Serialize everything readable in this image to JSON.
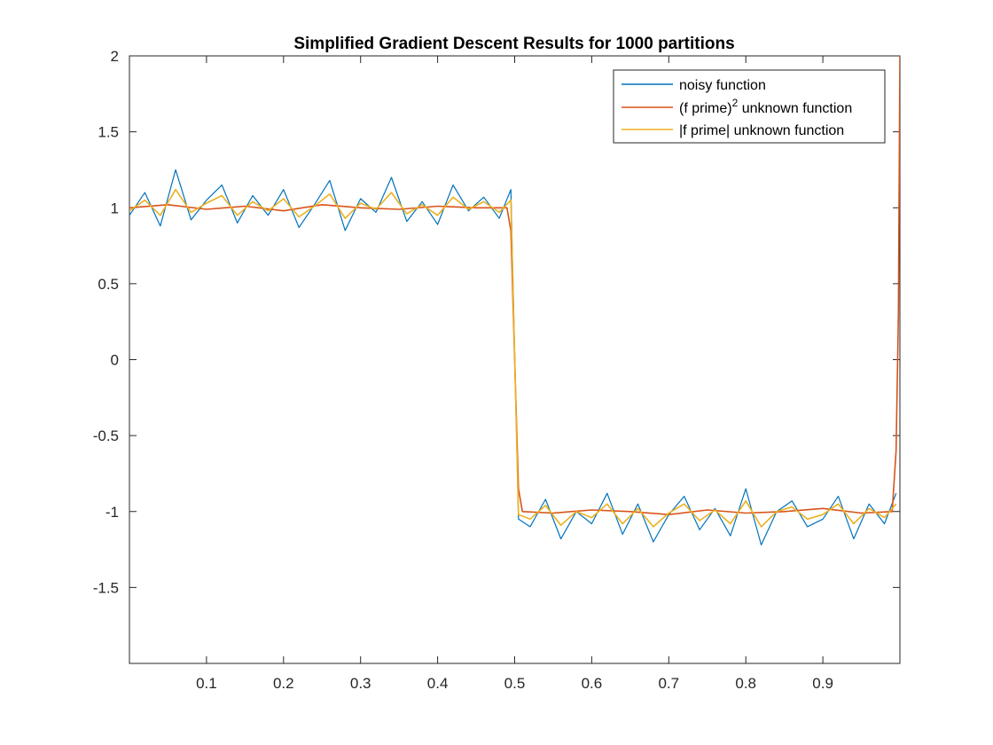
{
  "chart_data": {
    "type": "line",
    "title": "Simplified Gradient Descent Results for 1000 partitions",
    "xlabel": "",
    "ylabel": "",
    "xlim": [
      0,
      1
    ],
    "ylim": [
      -2,
      2
    ],
    "xticks": [
      0.1,
      0.2,
      0.3,
      0.4,
      0.5,
      0.6,
      0.7,
      0.8,
      0.9
    ],
    "xtick_labels": [
      "0.1",
      "0.2",
      "0.3",
      "0.4",
      "0.5",
      "0.6",
      "0.7",
      "0.8",
      "0.9"
    ],
    "yticks": [
      -1.5,
      -1,
      -0.5,
      0,
      0.5,
      1,
      1.5,
      2
    ],
    "ytick_labels": [
      "-1.5",
      "-1",
      "-0.5",
      "0",
      "0.5",
      "1",
      "1.5",
      "2"
    ],
    "grid": false,
    "legend_position": "top-right",
    "series": [
      {
        "name": "noisy function",
        "color": "#0072BD",
        "x": [
          0.0,
          0.02,
          0.04,
          0.06,
          0.08,
          0.1,
          0.12,
          0.14,
          0.16,
          0.18,
          0.2,
          0.22,
          0.24,
          0.26,
          0.28,
          0.3,
          0.32,
          0.34,
          0.36,
          0.38,
          0.4,
          0.42,
          0.44,
          0.46,
          0.48,
          0.495,
          0.505,
          0.52,
          0.54,
          0.56,
          0.58,
          0.6,
          0.62,
          0.64,
          0.66,
          0.68,
          0.7,
          0.72,
          0.74,
          0.76,
          0.78,
          0.8,
          0.82,
          0.84,
          0.86,
          0.88,
          0.9,
          0.92,
          0.94,
          0.96,
          0.98,
          0.995
        ],
        "y": [
          0.95,
          1.1,
          0.88,
          1.25,
          0.92,
          1.05,
          1.15,
          0.9,
          1.08,
          0.95,
          1.12,
          0.87,
          1.02,
          1.18,
          0.85,
          1.06,
          0.97,
          1.2,
          0.91,
          1.04,
          0.89,
          1.15,
          0.98,
          1.07,
          0.93,
          1.12,
          -1.05,
          -1.1,
          -0.92,
          -1.18,
          -1.0,
          -1.08,
          -0.88,
          -1.15,
          -0.95,
          -1.2,
          -1.02,
          -0.9,
          -1.12,
          -0.98,
          -1.16,
          -0.85,
          -1.22,
          -1.0,
          -0.93,
          -1.1,
          -1.05,
          -0.9,
          -1.18,
          -0.95,
          -1.08,
          -0.88
        ]
      },
      {
        "name": "(f prime)^2 unknown function",
        "color": "#D95319",
        "x": [
          0.0,
          0.05,
          0.1,
          0.15,
          0.2,
          0.25,
          0.3,
          0.35,
          0.4,
          0.45,
          0.49,
          0.495,
          0.5,
          0.505,
          0.51,
          0.55,
          0.6,
          0.65,
          0.7,
          0.75,
          0.8,
          0.85,
          0.9,
          0.95,
          0.99,
          0.995,
          0.998,
          1.0
        ],
        "y": [
          1.0,
          1.02,
          0.99,
          1.01,
          0.98,
          1.02,
          1.0,
          0.99,
          1.01,
          1.0,
          1.0,
          0.85,
          0.0,
          -0.85,
          -1.0,
          -1.01,
          -0.99,
          -1.0,
          -1.02,
          -0.99,
          -1.01,
          -1.0,
          -0.98,
          -1.01,
          -1.0,
          -0.6,
          0.3,
          2.0
        ]
      },
      {
        "name": "|f prime| unknown function",
        "color": "#EDB120",
        "x": [
          0.0,
          0.02,
          0.04,
          0.06,
          0.08,
          0.1,
          0.12,
          0.14,
          0.16,
          0.18,
          0.2,
          0.22,
          0.24,
          0.26,
          0.28,
          0.3,
          0.32,
          0.34,
          0.36,
          0.38,
          0.4,
          0.42,
          0.44,
          0.46,
          0.48,
          0.495,
          0.505,
          0.52,
          0.54,
          0.56,
          0.58,
          0.6,
          0.62,
          0.64,
          0.66,
          0.68,
          0.7,
          0.72,
          0.74,
          0.76,
          0.78,
          0.8,
          0.82,
          0.84,
          0.86,
          0.88,
          0.9,
          0.92,
          0.94,
          0.96,
          0.98,
          0.995
        ],
        "y": [
          0.98,
          1.05,
          0.95,
          1.12,
          0.97,
          1.03,
          1.08,
          0.95,
          1.04,
          0.98,
          1.06,
          0.94,
          1.01,
          1.09,
          0.93,
          1.03,
          0.99,
          1.1,
          0.96,
          1.02,
          0.95,
          1.07,
          0.99,
          1.04,
          0.97,
          1.05,
          -1.02,
          -1.05,
          -0.96,
          -1.09,
          -1.0,
          -1.04,
          -0.95,
          -1.08,
          -0.98,
          -1.1,
          -1.01,
          -0.95,
          -1.06,
          -0.99,
          -1.08,
          -0.93,
          -1.1,
          -1.0,
          -0.97,
          -1.05,
          -1.02,
          -0.95,
          -1.08,
          -0.98,
          -1.04,
          -0.95
        ]
      }
    ]
  }
}
